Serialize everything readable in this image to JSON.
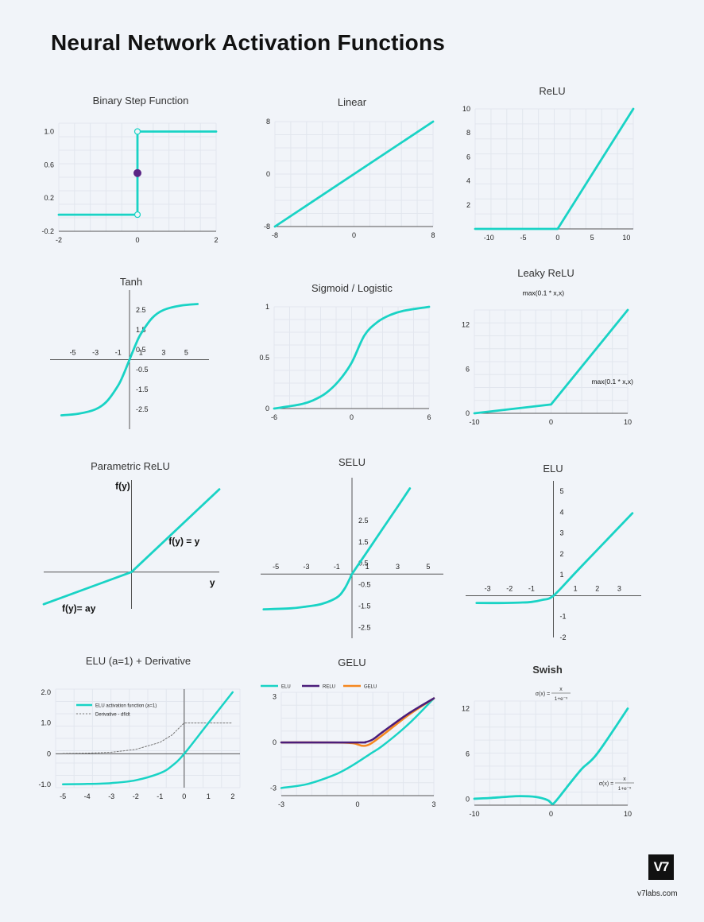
{
  "title": "Neural Network Activation Functions",
  "colors": {
    "curve": "#19d3c5",
    "relu": "#4b1d7a",
    "gelu": "#f5871f",
    "point": "#5b2585",
    "dashed": "#777777"
  },
  "brand": {
    "logo": "V7",
    "site": "v7labs.com"
  },
  "chart_data": [
    {
      "id": "binary-step",
      "type": "line",
      "title": "Binary Step Function",
      "x": [
        -2,
        0,
        0,
        2
      ],
      "y": [
        0,
        0,
        1,
        1
      ],
      "xticks": [
        -2,
        0,
        2
      ],
      "yticks": [
        -0.2,
        0.2,
        0.6,
        1.0
      ],
      "xtick_labels": [
        "-2",
        "0",
        "2"
      ],
      "ytick_labels": [
        "-0.2",
        "0.2",
        "0.6",
        "1.0"
      ],
      "xlim": [
        -2,
        2
      ],
      "ylim": [
        -0.2,
        1.1
      ],
      "open_points": [
        [
          0,
          0
        ],
        [
          0,
          1
        ]
      ],
      "filled_point": [
        0,
        0.5
      ],
      "grid": true
    },
    {
      "id": "linear",
      "type": "line",
      "title": "Linear",
      "x": [
        -8,
        8
      ],
      "y": [
        -8,
        8
      ],
      "xticks": [
        -8,
        0,
        8
      ],
      "yticks": [
        -8,
        0,
        8
      ],
      "xtick_labels": [
        "-8",
        "0",
        "8"
      ],
      "ytick_labels": [
        "-8",
        "0",
        "8"
      ],
      "xlim": [
        -8,
        8
      ],
      "ylim": [
        -8,
        8
      ],
      "grid": true
    },
    {
      "id": "relu",
      "type": "line",
      "title": "ReLU",
      "x": [
        -12,
        0,
        11
      ],
      "y": [
        0,
        0,
        10
      ],
      "xticks": [
        -10,
        -5,
        0,
        5,
        10
      ],
      "yticks": [
        2,
        4,
        6,
        8,
        10
      ],
      "xtick_labels": [
        "-10",
        "-5",
        "0",
        "5",
        "10"
      ],
      "ytick_labels": [
        "2",
        "4",
        "6",
        "8",
        "10"
      ],
      "xlim": [
        -12,
        11
      ],
      "ylim": [
        0,
        10
      ],
      "grid": true
    },
    {
      "id": "tanh",
      "type": "line",
      "title": "Tanh",
      "x": [
        -6,
        -4.5,
        -3,
        -2,
        -1,
        -0.5,
        0,
        0.5,
        1,
        2,
        3,
        4.5,
        6
      ],
      "y": [
        -2.8,
        -2.72,
        -2.5,
        -2.1,
        -1.3,
        -0.7,
        0,
        0.7,
        1.3,
        2.1,
        2.5,
        2.72,
        2.8
      ],
      "xticks": [
        -5,
        -3,
        -1,
        1,
        3,
        5
      ],
      "yticks": [
        2.5,
        1.5,
        0.5,
        -0.5,
        -1.5,
        -2.5
      ],
      "xtick_labels": [
        "-5",
        "-3",
        "-1",
        "1",
        "3",
        "5"
      ],
      "ytick_labels": [
        "2.5",
        "1.5",
        "0.5",
        "-0.5",
        "-1.5",
        "-2.5"
      ],
      "xlim": [
        -7,
        7
      ],
      "ylim": [
        -3.5,
        3.5
      ],
      "grid": false
    },
    {
      "id": "sigmoid",
      "type": "line",
      "title": "Sigmoid / Logistic",
      "x": [
        -6,
        -4,
        -3,
        -2,
        -1,
        0,
        1,
        2,
        3,
        4,
        6
      ],
      "y": [
        0,
        0.04,
        0.08,
        0.15,
        0.27,
        0.45,
        0.72,
        0.85,
        0.92,
        0.96,
        1
      ],
      "xticks": [
        -6,
        0,
        6
      ],
      "yticks": [
        0,
        0.5,
        1
      ],
      "xtick_labels": [
        "-6",
        "0",
        "6"
      ],
      "ytick_labels": [
        "0",
        "0.5",
        "1"
      ],
      "xlim": [
        -6,
        6
      ],
      "ylim": [
        0,
        1
      ],
      "grid": true
    },
    {
      "id": "leaky-relu",
      "type": "line",
      "title": "Leaky ReLU",
      "x": [
        -10,
        0,
        10
      ],
      "y": [
        0,
        1.2,
        14
      ],
      "xticks": [
        -10,
        0,
        10
      ],
      "yticks": [
        0,
        6,
        12
      ],
      "xtick_labels": [
        "-10",
        "0",
        "10"
      ],
      "ytick_labels": [
        "0",
        "6",
        "12"
      ],
      "xlim": [
        -10,
        10
      ],
      "ylim": [
        0,
        14
      ],
      "grid": true,
      "annotations": [
        {
          "text": "max(0.1 * x,x)",
          "x": -1,
          "y": 16
        },
        {
          "text": "max(0.1 * x,x)",
          "x": 8,
          "y": 4
        }
      ]
    },
    {
      "id": "parametric-relu",
      "type": "line",
      "title": "Parametric ReLU",
      "x": [
        -10,
        0,
        10
      ],
      "y": [
        -3.5,
        0,
        9
      ],
      "xlim": [
        -10,
        10
      ],
      "ylim": [
        -4,
        10
      ],
      "grid": false,
      "annotations": [
        {
          "text": "f(y)",
          "x": -1,
          "y": 9
        },
        {
          "text": "f(y) = y",
          "x": 6,
          "y": 3
        },
        {
          "text": "y",
          "x": 9.2,
          "y": -1.5
        },
        {
          "text": "f(y)= ay",
          "x": -6,
          "y": -4.3
        }
      ]
    },
    {
      "id": "selu",
      "type": "line",
      "title": "SELU",
      "x": [
        -5.8,
        -4,
        -3,
        -2,
        -1,
        -0.5,
        -0.1,
        0,
        1,
        2,
        3,
        3.8
      ],
      "y": [
        -1.65,
        -1.6,
        -1.52,
        -1.4,
        -1.1,
        -0.7,
        -0.15,
        0,
        1.05,
        2.1,
        3.15,
        4.0
      ],
      "xticks": [
        -5,
        -3,
        -1,
        1,
        3,
        5
      ],
      "yticks": [
        2.5,
        1.5,
        0.5,
        -0.5,
        -1.5,
        -2.5
      ],
      "xtick_labels": [
        "-5",
        "-3",
        "-1",
        "1",
        "3",
        "5"
      ],
      "ytick_labels": [
        "2.5",
        "1.5",
        "0.5",
        "-0.5",
        "-1.5",
        "-2.5"
      ],
      "xlim": [
        -6,
        6
      ],
      "ylim": [
        -3,
        4.5
      ],
      "grid": false
    },
    {
      "id": "elu",
      "type": "line",
      "title": "ELU",
      "x": [
        -3.5,
        -2.5,
        -1.5,
        -1,
        -0.5,
        0,
        1,
        2,
        3.6
      ],
      "y": [
        -0.35,
        -0.35,
        -0.33,
        -0.3,
        -0.2,
        0,
        1.1,
        2.2,
        3.95
      ],
      "xticks": [
        -3,
        -2,
        -1,
        1,
        2,
        3
      ],
      "yticks": [
        5,
        4,
        3,
        2,
        1,
        -1,
        -2
      ],
      "xtick_labels": [
        "-3",
        "-2",
        "-1",
        "1",
        "2",
        "3"
      ],
      "ytick_labels": [
        "5",
        "4",
        "3",
        "2",
        "1",
        "-1",
        "-2"
      ],
      "xlim": [
        -4,
        4
      ],
      "ylim": [
        -2,
        5.5
      ],
      "grid": false
    },
    {
      "id": "elu-derivative",
      "type": "line",
      "title": "ELU (a=1) + Derivative",
      "series": [
        {
          "name": "ELU activation function (a=1)",
          "x": [
            -5,
            -4,
            -3,
            -2,
            -1,
            -0.5,
            0,
            1,
            2
          ],
          "y": [
            -0.99,
            -0.98,
            -0.95,
            -0.86,
            -0.63,
            -0.39,
            0,
            1,
            2
          ]
        },
        {
          "name": "Derivative - df/dt",
          "x": [
            -5,
            -4,
            -3,
            -2,
            -1,
            -0.5,
            0,
            0.001,
            2
          ],
          "y": [
            0.01,
            0.02,
            0.05,
            0.14,
            0.37,
            0.61,
            1,
            1,
            1
          ]
        }
      ],
      "xticks": [
        -5,
        -4,
        -3,
        -2,
        -1,
        0,
        1,
        2
      ],
      "yticks": [
        2.0,
        1.0,
        0,
        -1.0
      ],
      "xtick_labels": [
        "-5",
        "-4",
        "-3",
        "-2",
        "-1",
        "0",
        "1",
        "2"
      ],
      "ytick_labels": [
        "2.0",
        "1.0",
        "0",
        "-1.0"
      ],
      "xlim": [
        -5.3,
        2.3
      ],
      "ylim": [
        -1.1,
        2.1
      ],
      "grid": true
    },
    {
      "id": "gelu",
      "type": "line",
      "title": "GELU",
      "series": [
        {
          "name": "ELU",
          "x": [
            -3,
            -2,
            -1,
            -0.5,
            0,
            0.5,
            1,
            2,
            3
          ],
          "y": [
            -3,
            -2.75,
            -2.2,
            -1.8,
            -1.3,
            -0.75,
            -0.2,
            1.2,
            2.9
          ]
        },
        {
          "name": "RELU",
          "x": [
            -3,
            0,
            0.3,
            0.6,
            1,
            2,
            3
          ],
          "y": [
            0,
            0,
            0.02,
            0.2,
            0.7,
            1.9,
            2.9
          ]
        },
        {
          "name": "GELU",
          "x": [
            -3,
            -1,
            -0.2,
            0.2,
            0.5,
            1,
            2,
            3
          ],
          "y": [
            0,
            0,
            -0.05,
            -0.22,
            -0.1,
            0.5,
            1.8,
            2.9
          ]
        }
      ],
      "xticks": [
        -3,
        0,
        3
      ],
      "yticks": [
        -3,
        0,
        3
      ],
      "xtick_labels": [
        "-3",
        "0",
        "3"
      ],
      "ytick_labels": [
        "-3",
        "0",
        "3"
      ],
      "xlim": [
        -3,
        3
      ],
      "ylim": [
        -3.5,
        3.3
      ],
      "grid": true
    },
    {
      "id": "swish",
      "type": "line",
      "title": "Swish",
      "x": [
        -10,
        -8,
        -6,
        -4,
        -2,
        -0.5,
        0,
        0.3,
        1,
        2,
        4,
        6,
        10
      ],
      "y": [
        0.05,
        0.15,
        0.3,
        0.4,
        0.3,
        -0.1,
        -0.5,
        -0.6,
        0.2,
        1.5,
        4,
        6,
        12
      ],
      "xticks": [
        -10,
        0,
        10
      ],
      "yticks": [
        0,
        6,
        12
      ],
      "xtick_labels": [
        "-10",
        "0",
        "10"
      ],
      "ytick_labels": [
        "0",
        "6",
        "12"
      ],
      "xlim": [
        -10,
        10
      ],
      "ylim": [
        -0.8,
        13
      ],
      "grid": true,
      "formula": {
        "lhs": "σ(x) =",
        "num": "x",
        "den": "1+e⁻ˣ"
      }
    }
  ]
}
